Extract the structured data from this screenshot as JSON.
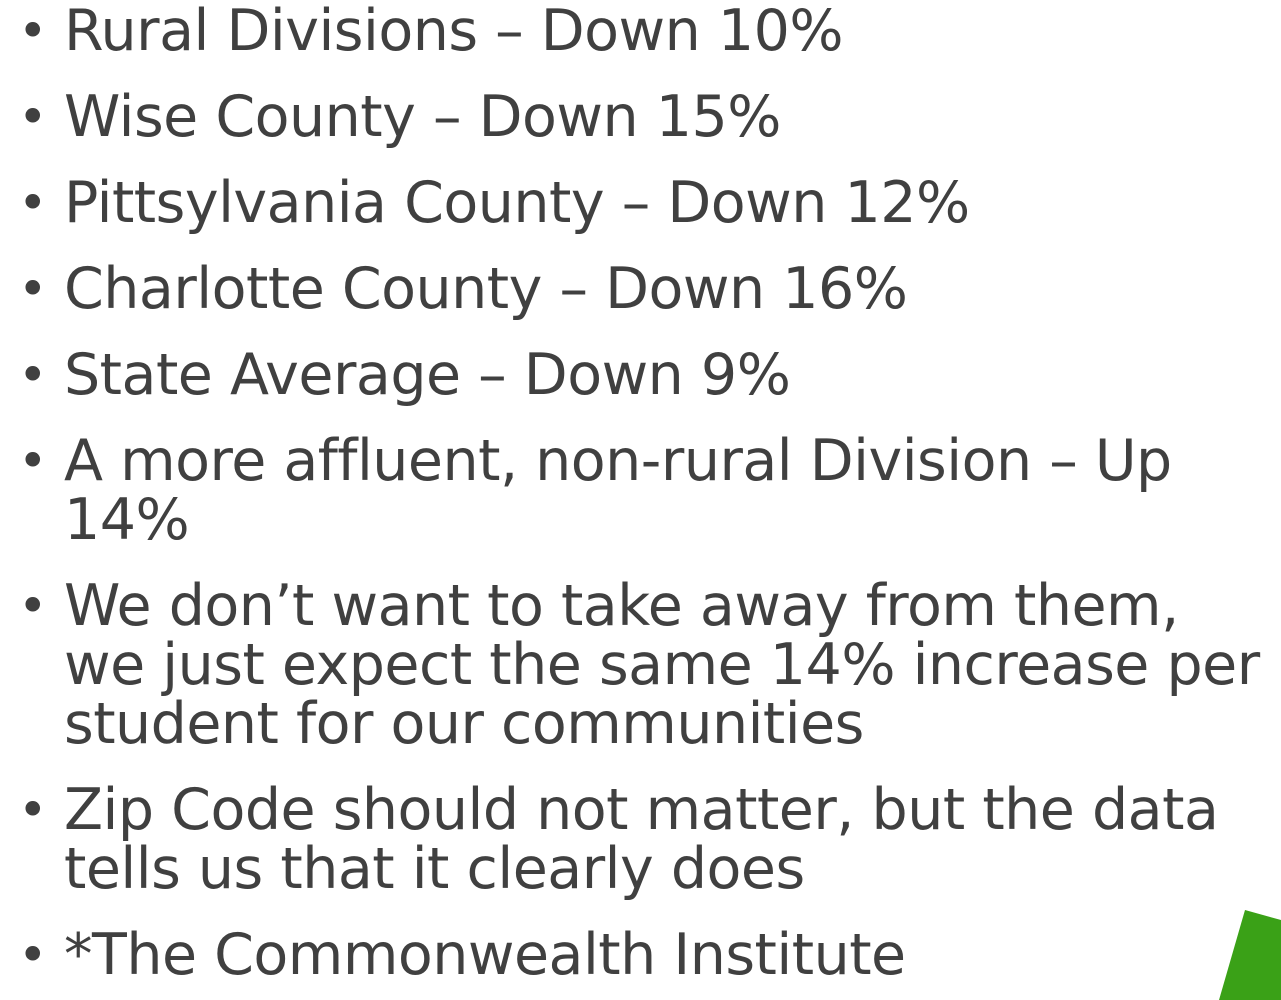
{
  "bullets": [
    "Rural Divisions – Down 10%",
    "Wise County – Down 15%",
    "Pittsylvania County – Down 12%",
    "Charlotte County – Down 16%",
    "State Average – Down 9%",
    "A more affluent, non-rural Division – Up 14%",
    "We don’t want to take away from them, we just expect the same 14% increase per student for our communities",
    "Zip Code should not matter, but the data tells us that it clearly does",
    "*The Commonwealth Institute"
  ]
}
